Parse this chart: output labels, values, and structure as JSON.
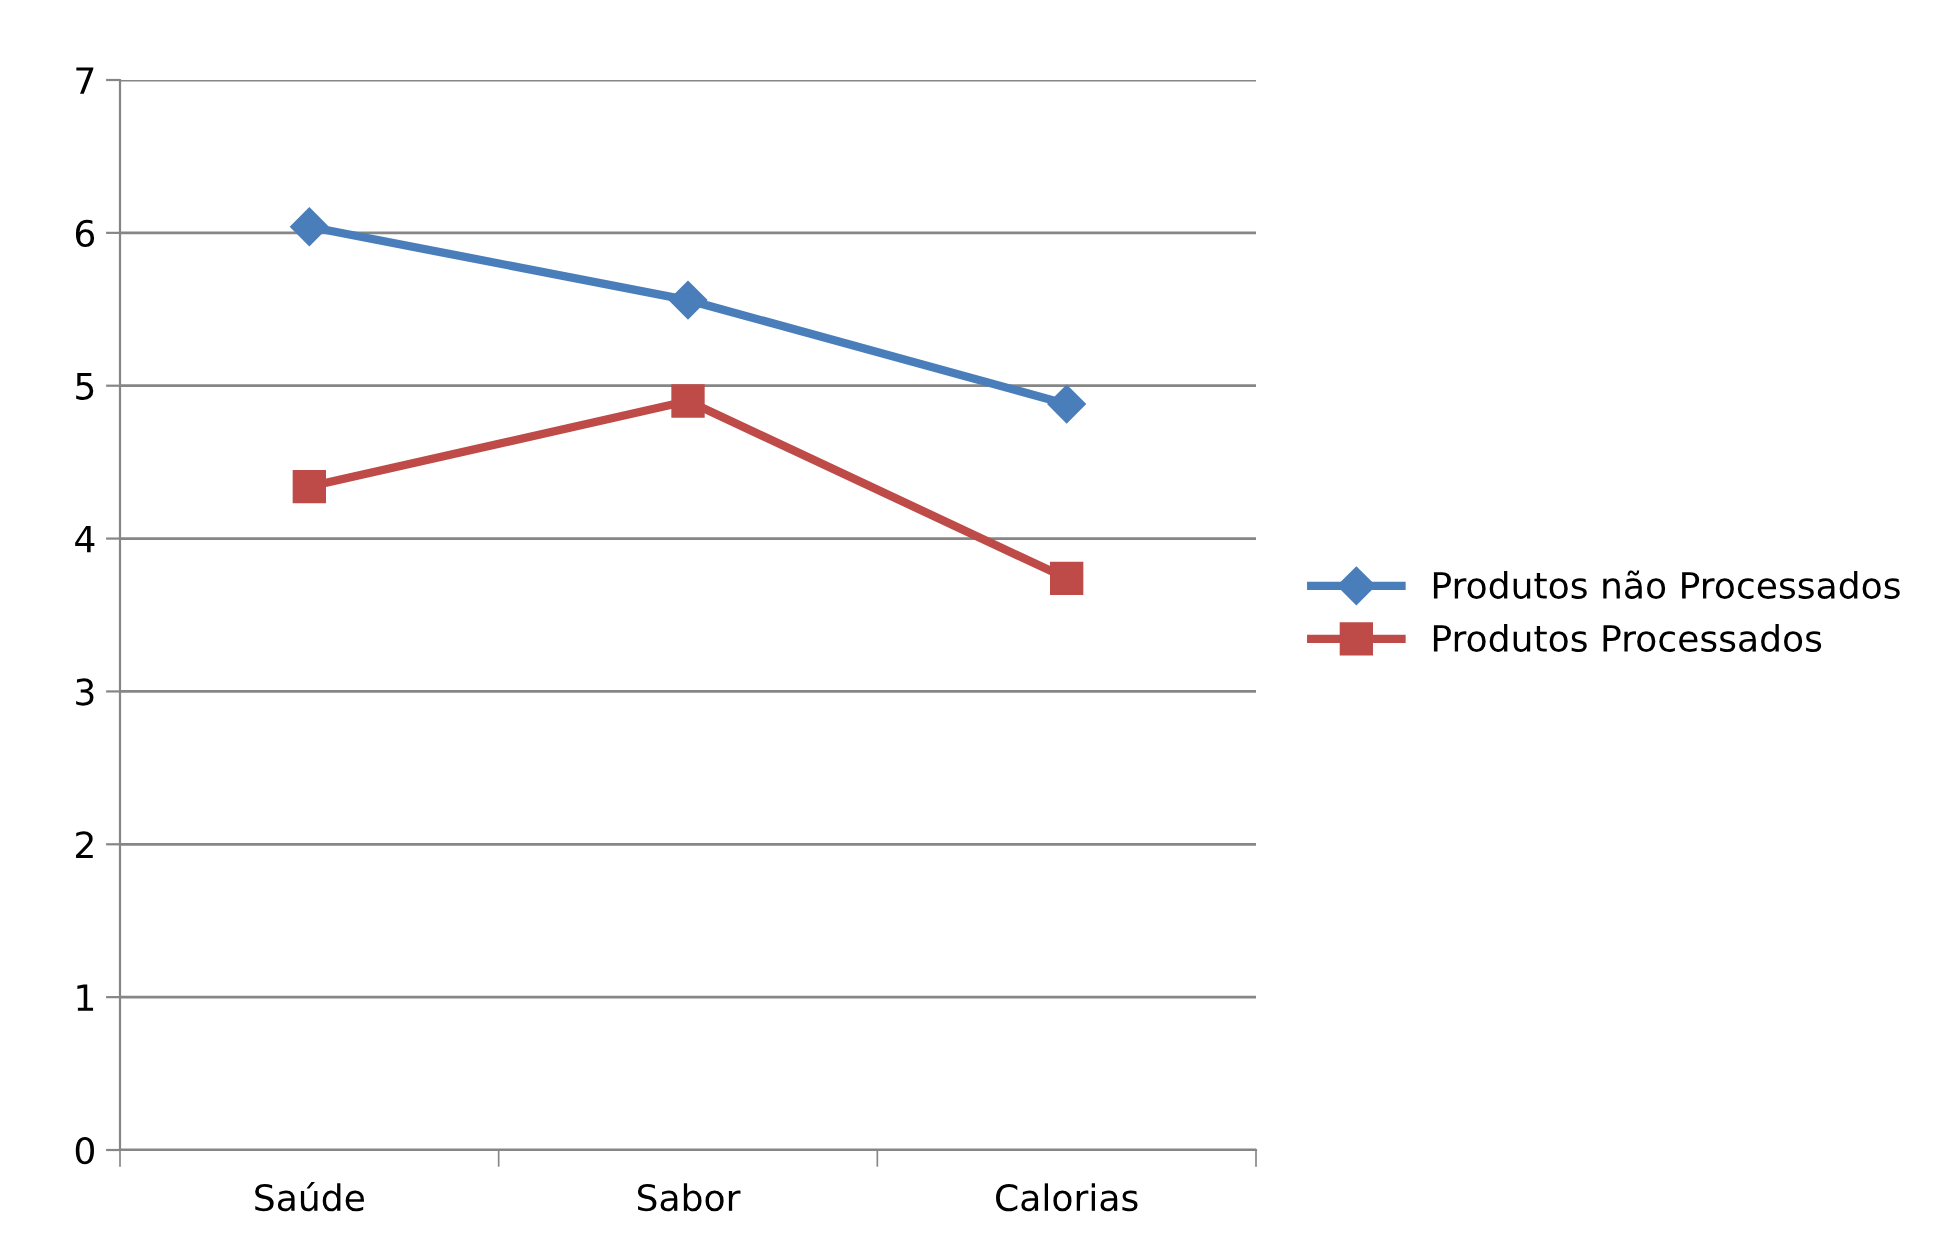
{
  "chart_data": {
    "type": "line",
    "categories": [
      "Saúde",
      "Sabor",
      "Calorias"
    ],
    "series": [
      {
        "name": "Produtos não Processados",
        "color": "#4a7ebb",
        "marker": "diamond",
        "values": [
          6.04,
          5.56,
          4.88
        ]
      },
      {
        "name": "Produtos Processados",
        "color": "#be4b48",
        "marker": "square",
        "values": [
          4.34,
          4.9,
          3.74
        ]
      }
    ],
    "ylim": [
      0,
      7
    ],
    "yticks": [
      0,
      1,
      2,
      3,
      4,
      5,
      6,
      7
    ],
    "grid": "y",
    "legend": "right",
    "line_style": "solid"
  }
}
